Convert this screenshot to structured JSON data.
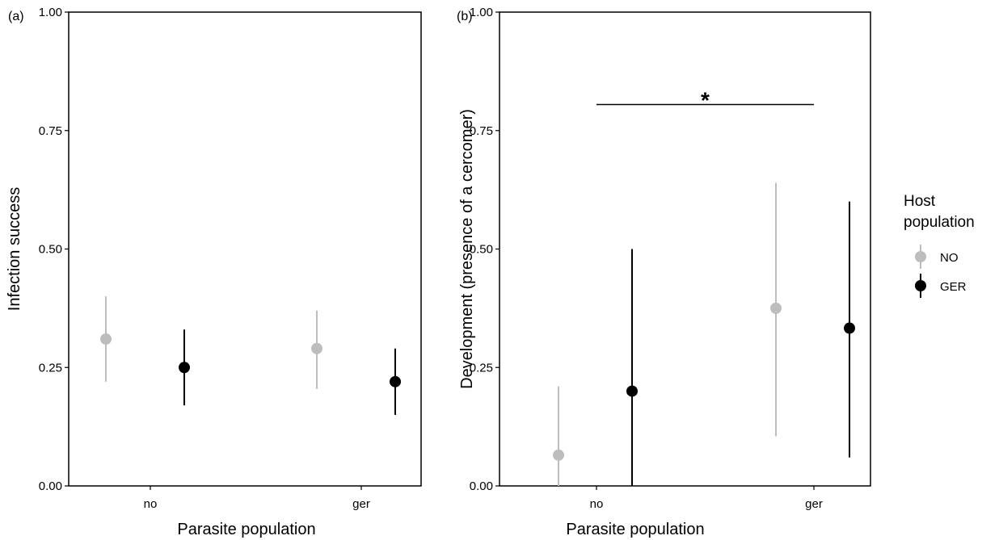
{
  "chart_data": [
    {
      "type": "scatter",
      "panel_label": "(a)",
      "xlabel": "Parasite population",
      "ylabel": "Infection success",
      "categories": [
        "no",
        "ger"
      ],
      "ylim": [
        0,
        1
      ],
      "yticks": [
        "0.00",
        "0.25",
        "0.50",
        "0.75",
        "1.00"
      ],
      "grid": false,
      "series": [
        {
          "name": "NO",
          "color": "#bdbdbd",
          "values": [
            0.31,
            0.29
          ],
          "lower": [
            0.22,
            0.205
          ],
          "upper": [
            0.4,
            0.37
          ]
        },
        {
          "name": "GER",
          "color": "#000000",
          "values": [
            0.25,
            0.22
          ],
          "lower": [
            0.17,
            0.15
          ],
          "upper": [
            0.33,
            0.29
          ]
        }
      ]
    },
    {
      "type": "scatter",
      "panel_label": "(b)",
      "xlabel": "Parasite population",
      "ylabel": "Development (presence of a cercomer)",
      "categories": [
        "no",
        "ger"
      ],
      "ylim": [
        0,
        1
      ],
      "yticks": [
        "0.00",
        "0.25",
        "0.50",
        "0.75",
        "1.00"
      ],
      "grid": false,
      "annotation": {
        "text": "*",
        "y": 0.805,
        "from": "no",
        "to": "ger"
      },
      "series": [
        {
          "name": "NO",
          "color": "#bdbdbd",
          "values": [
            0.065,
            0.375
          ],
          "lower": [
            0.0,
            0.105
          ],
          "upper": [
            0.21,
            0.64
          ]
        },
        {
          "name": "GER",
          "color": "#000000",
          "values": [
            0.2,
            0.333
          ],
          "lower": [
            0.0,
            0.06
          ],
          "upper": [
            0.5,
            0.6
          ]
        }
      ]
    }
  ],
  "legend": {
    "title_lines": [
      "Host",
      "population"
    ],
    "placement": "right",
    "items": [
      {
        "label": "NO",
        "color": "#bdbdbd"
      },
      {
        "label": "GER",
        "color": "#000000"
      }
    ]
  }
}
